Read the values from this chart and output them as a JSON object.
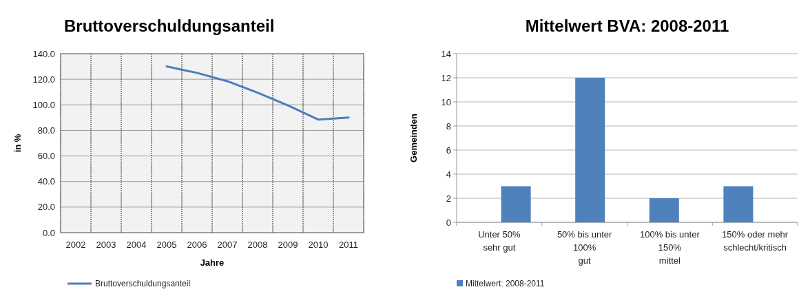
{
  "chart_data": [
    {
      "type": "line",
      "title": "Bruttoverschuldungsanteil",
      "xlabel": "Jahre",
      "ylabel": "in %",
      "categories": [
        "2002",
        "2003",
        "2004",
        "2005",
        "2006",
        "2007",
        "2008",
        "2009",
        "2010",
        "2011"
      ],
      "series": [
        {
          "name": "Bruttoverschuldungsanteil",
          "color": "#4a7ebb",
          "values": [
            null,
            null,
            null,
            130,
            125,
            118.5,
            109.5,
            99.5,
            88.5,
            90
          ]
        }
      ],
      "ylim": [
        0,
        140
      ],
      "yticks": [
        {
          "value": 0,
          "label": "0.0"
        },
        {
          "value": 20,
          "label": "20.0"
        },
        {
          "value": 40,
          "label": "40.0"
        },
        {
          "value": 60,
          "label": "60.0"
        },
        {
          "value": 80,
          "label": "80.0"
        },
        {
          "value": 100,
          "label": "100.0"
        },
        {
          "value": 120,
          "label": "120.0"
        },
        {
          "value": 140,
          "label": "140.0"
        }
      ],
      "grid": true,
      "legend": "bottom",
      "marker": "none",
      "line_style": "solid"
    },
    {
      "type": "bar",
      "title": "Mittelwert BVA: 2008-2011",
      "ylabel": "Gemeinden",
      "categories": [
        "Unter 50%\nsehr gut",
        "50% bis unter\n100%\ngut",
        "100% bis unter\n150%\nmittel",
        "150% oder mehr\nschlecht/kritisch"
      ],
      "series": [
        {
          "name": "Mittelwert: 2008-2011",
          "color": "#4f81bd",
          "values": [
            3,
            12,
            2,
            3
          ]
        }
      ],
      "ylim": [
        0,
        14
      ],
      "yticks": [
        0,
        2,
        4,
        6,
        8,
        10,
        12,
        14
      ],
      "grid": "y",
      "legend": "bottom"
    }
  ]
}
